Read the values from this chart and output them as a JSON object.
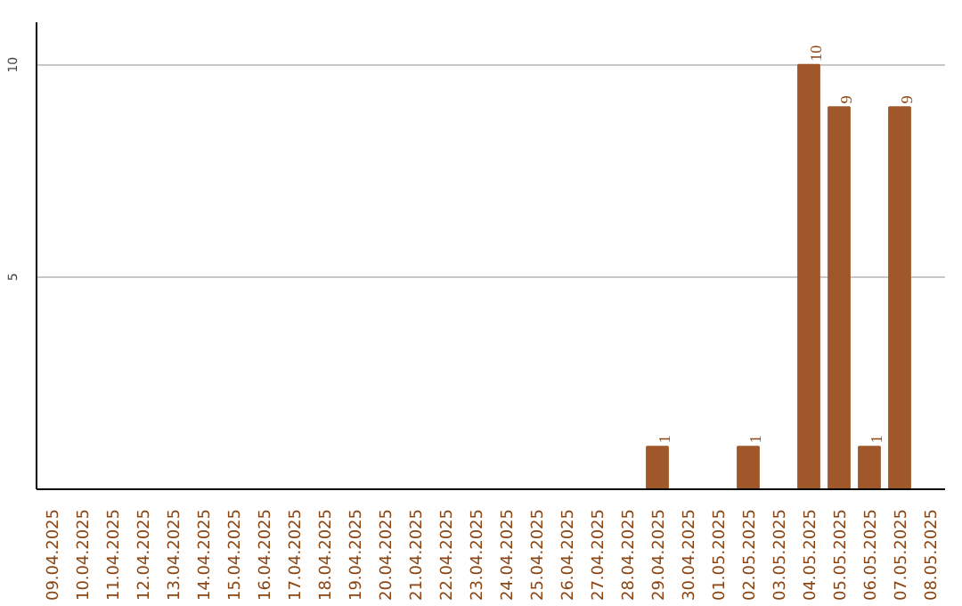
{
  "chart_data": {
    "type": "bar",
    "categories": [
      "09.04.2025",
      "10.04.2025",
      "11.04.2025",
      "12.04.2025",
      "13.04.2025",
      "14.04.2025",
      "15.04.2025",
      "16.04.2025",
      "17.04.2025",
      "18.04.2025",
      "19.04.2025",
      "20.04.2025",
      "21.04.2025",
      "22.04.2025",
      "23.04.2025",
      "24.04.2025",
      "25.04.2025",
      "26.04.2025",
      "27.04.2025",
      "28.04.2025",
      "29.04.2025",
      "30.04.2025",
      "01.05.2025",
      "02.05.2025",
      "03.05.2025",
      "04.05.2025",
      "05.05.2025",
      "06.05.2025",
      "07.05.2025",
      "08.05.2025"
    ],
    "values": [
      0,
      0,
      0,
      0,
      0,
      0,
      0,
      0,
      0,
      0,
      0,
      0,
      0,
      0,
      0,
      0,
      0,
      0,
      0,
      0,
      1,
      0,
      0,
      1,
      0,
      10,
      9,
      1,
      9,
      0
    ],
    "value_labels": [
      null,
      null,
      null,
      null,
      null,
      null,
      null,
      null,
      null,
      null,
      null,
      null,
      null,
      null,
      null,
      null,
      null,
      null,
      null,
      null,
      "1",
      null,
      null,
      "1",
      null,
      "10",
      "9",
      "1",
      "9",
      null
    ],
    "color": "#a0582a",
    "ylim": [
      0,
      11
    ],
    "yticks": [
      5,
      10
    ],
    "grid": "y"
  }
}
